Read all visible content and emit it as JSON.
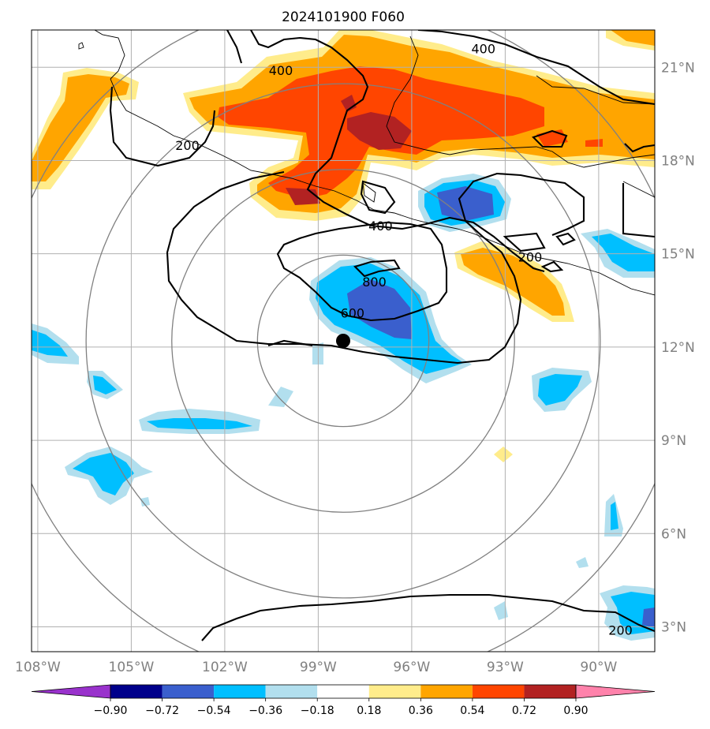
{
  "title": "2024101900 F060",
  "chart_data": {
    "type": "map",
    "lon_range": [
      -108.2,
      -88.2
    ],
    "lat_range": [
      2.2,
      22.2
    ],
    "lon_ticks": [
      {
        "value": -108,
        "label": "108°W"
      },
      {
        "value": -105,
        "label": "105°W"
      },
      {
        "value": -102,
        "label": "102°W"
      },
      {
        "value": -99,
        "label": "99°W"
      },
      {
        "value": -96,
        "label": "96°W"
      },
      {
        "value": -93,
        "label": "93°W"
      },
      {
        "value": -90,
        "label": "90°W"
      }
    ],
    "lat_ticks": [
      {
        "value": 3,
        "label": "3°N"
      },
      {
        "value": 6,
        "label": "6°N"
      },
      {
        "value": 9,
        "label": "9°N"
      },
      {
        "value": 12,
        "label": "12°N"
      },
      {
        "value": 15,
        "label": "15°N"
      },
      {
        "value": 18,
        "label": "18°N"
      },
      {
        "value": 21,
        "label": "21°N"
      }
    ],
    "center_marker": {
      "lon": -98.2,
      "lat": 12.2
    },
    "range_rings_deg": [
      2.75,
      5.5,
      8.25,
      11.0
    ],
    "contour_labels": [
      {
        "text": "400",
        "lon": -97.0,
        "lat": 15.9
      },
      {
        "text": "400",
        "lon": -100.2,
        "lat": 20.9
      },
      {
        "text": "400",
        "lon": -93.7,
        "lat": 21.6
      },
      {
        "text": "200",
        "lon": -103.2,
        "lat": 18.5
      },
      {
        "text": "200",
        "lon": -92.2,
        "lat": 14.9
      },
      {
        "text": "200",
        "lon": -89.3,
        "lat": 2.9
      },
      {
        "text": "800",
        "lon": -97.2,
        "lat": 14.1
      },
      {
        "text": "600",
        "lon": -97.9,
        "lat": 13.1
      }
    ],
    "colorbar": {
      "colors": [
        "#9932cc",
        "#00008b",
        "#3a5fcd",
        "#00bfff",
        "#b2dfee",
        "#ffffff",
        "#ffec8b",
        "#ffa500",
        "#ff4500",
        "#b22222",
        "#ff82ab"
      ],
      "ticks": [
        "−0.90",
        "−0.72",
        "−0.54",
        "−0.36",
        "−0.18",
        "0.18",
        "0.36",
        "0.54",
        "0.72",
        "0.90"
      ]
    }
  }
}
